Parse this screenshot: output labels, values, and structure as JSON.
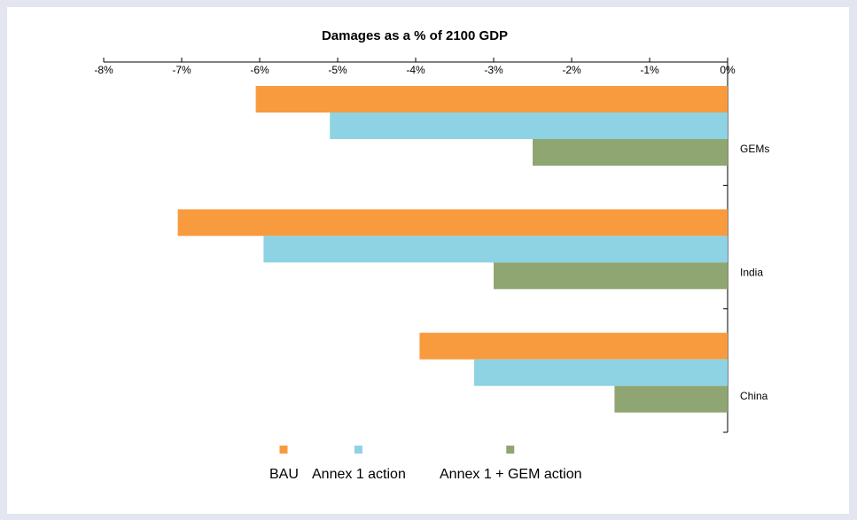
{
  "chart_data": {
    "type": "bar",
    "orientation": "horizontal",
    "title": "Damages as a % of 2100 GDP",
    "categories": [
      "GEMs",
      "India",
      "China"
    ],
    "series": [
      {
        "name": "BAU",
        "color": "#f79b3e",
        "values": [
          -6.05,
          -7.05,
          -3.95
        ]
      },
      {
        "name": "Annex 1 action",
        "color": "#8dd3e3",
        "values": [
          -5.1,
          -5.95,
          -3.25
        ]
      },
      {
        "name": "Annex 1 + GEM action",
        "color": "#8fa672",
        "values": [
          -2.5,
          -3.0,
          -1.45
        ]
      }
    ],
    "xlim": [
      -8,
      0
    ],
    "xticks": [
      {
        "value": -8,
        "label": "-8%"
      },
      {
        "value": -7,
        "label": "-7%"
      },
      {
        "value": -6,
        "label": "-6%"
      },
      {
        "value": -5,
        "label": "-5%"
      },
      {
        "value": -4,
        "label": "-4%"
      },
      {
        "value": -3,
        "label": "-3%"
      },
      {
        "value": -2,
        "label": "-2%"
      },
      {
        "value": -1,
        "label": "-1%"
      },
      {
        "value": 0,
        "label": "0%"
      }
    ],
    "legend": "bottom"
  }
}
